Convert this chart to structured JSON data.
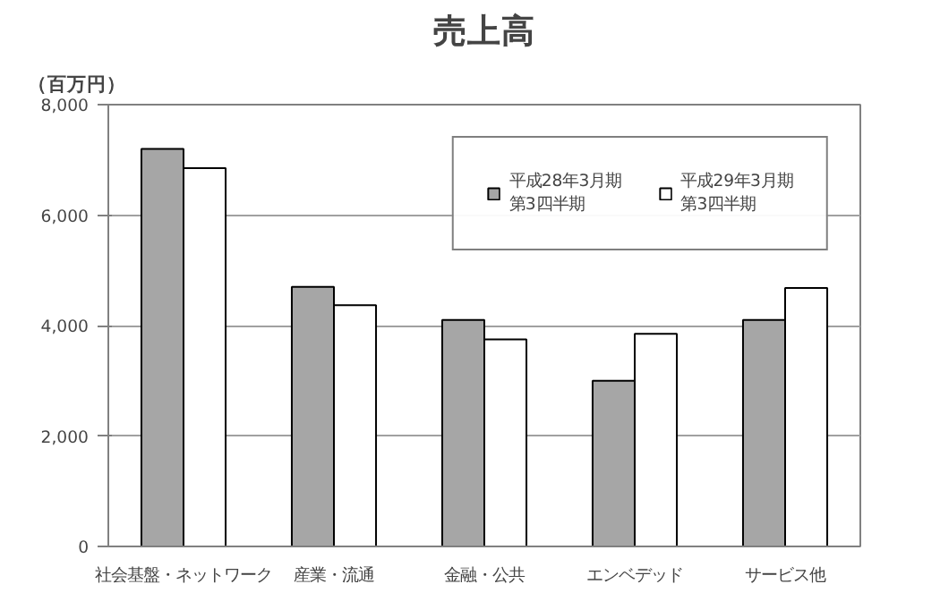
{
  "chart_data": {
    "type": "bar",
    "title": "売上高",
    "ylabel": "（百万円）",
    "categories": [
      "社会基盤・ネットワーク",
      "産業・流通",
      "金融・公共",
      "エンベデッド",
      "サービス他"
    ],
    "series": [
      {
        "name": "平成28年3月期第3四半期",
        "color": "#a6a6a6",
        "values": [
          7200,
          4700,
          4100,
          3000,
          4100
        ]
      },
      {
        "name": "平成29年3月期第3四半期",
        "color": "#ffffff",
        "values": [
          6850,
          4370,
          3750,
          3850,
          4680
        ]
      }
    ],
    "ylim": [
      0,
      8000
    ],
    "yticks": [
      0,
      {
        "value": 2000,
        "label": "2,000"
      },
      {
        "value": 4000,
        "label": "4,000"
      },
      {
        "value": 6000,
        "label": "6,000"
      },
      {
        "value": 8000,
        "label": "8,000"
      }
    ],
    "grid": "y",
    "legend": "top right"
  }
}
